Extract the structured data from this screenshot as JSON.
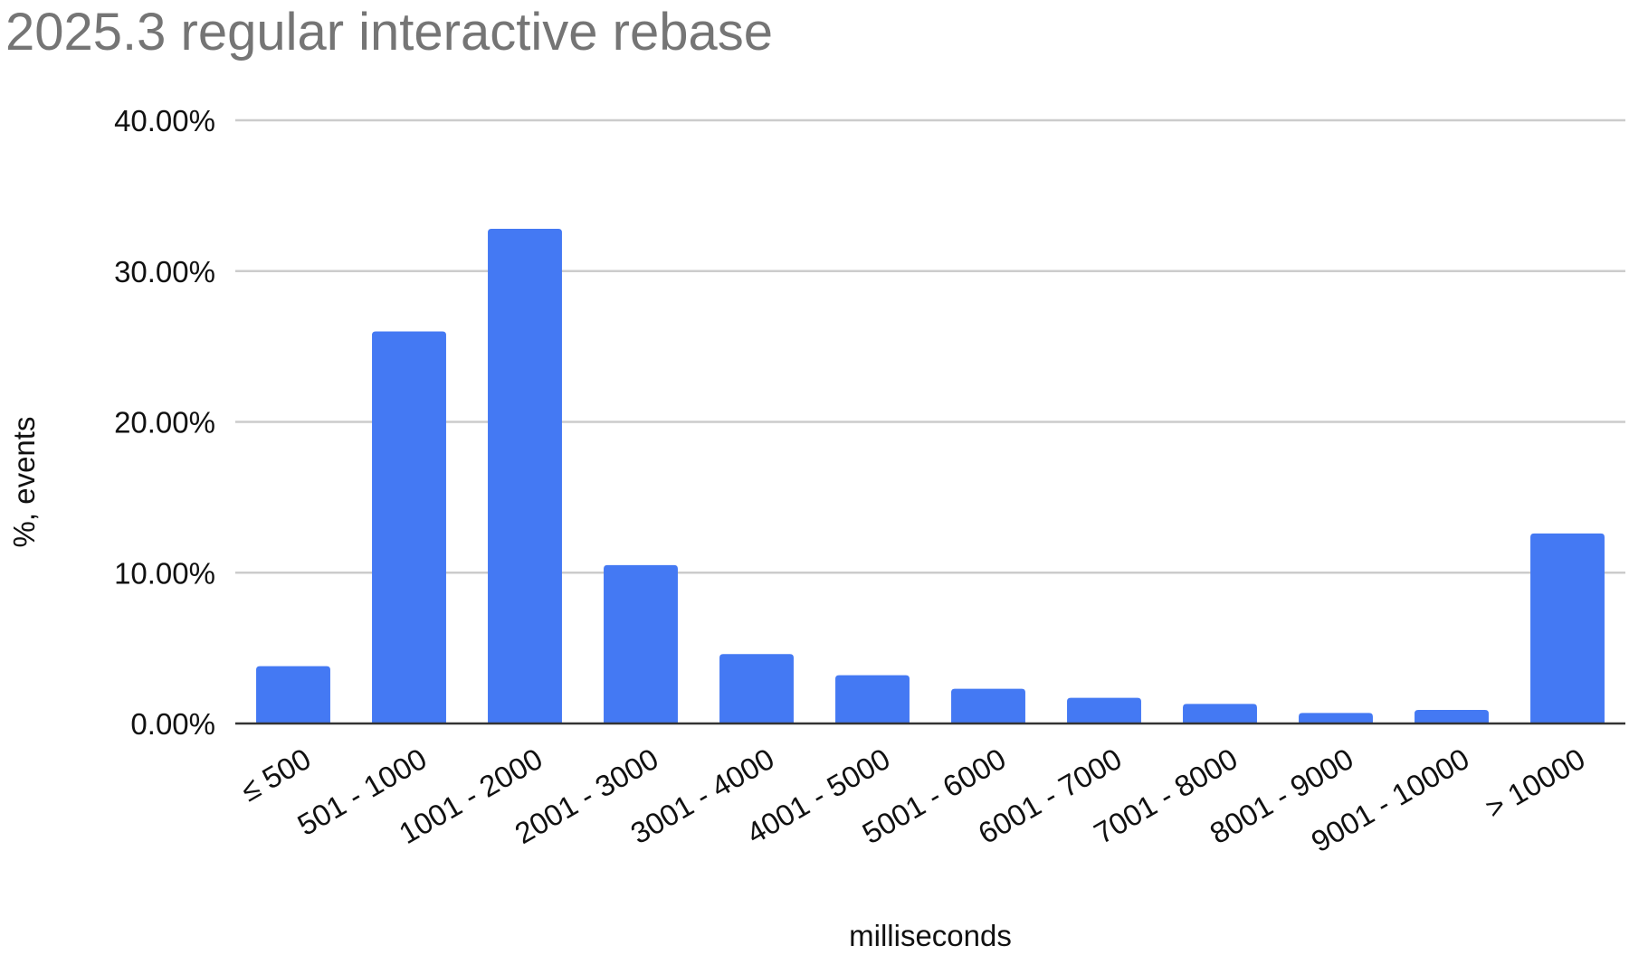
{
  "chart_data": {
    "type": "bar",
    "title": "2025.3 regular interactive rebase",
    "xlabel": "milliseconds",
    "ylabel": "%, events",
    "categories": [
      "≤ 500",
      "501 - 1000",
      "1001 - 2000",
      "2001 - 3000",
      "3001 - 4000",
      "4001 - 5000",
      "5001 - 6000",
      "6001 - 7000",
      "7001 - 8000",
      "8001 - 9000",
      "9001 - 10000",
      "> 10000"
    ],
    "values": [
      3.8,
      26.0,
      32.8,
      10.5,
      4.6,
      3.2,
      2.3,
      1.7,
      1.3,
      0.7,
      0.9,
      12.6
    ],
    "ylim": [
      0,
      40
    ],
    "yticks": [
      "0.00%",
      "10.00%",
      "20.00%",
      "30.00%",
      "40.00%"
    ],
    "bar_color": "#4479f3",
    "grid": true,
    "legend": "none"
  }
}
